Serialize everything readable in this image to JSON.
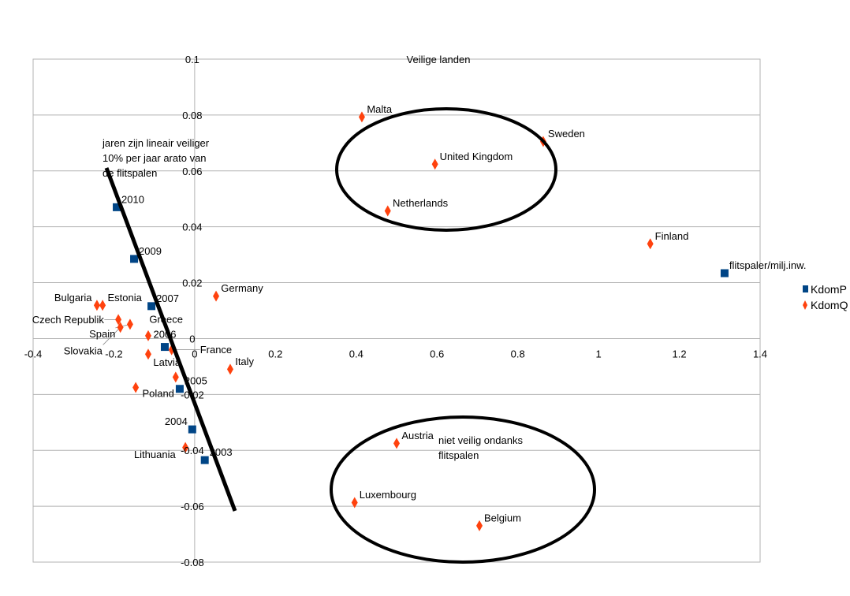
{
  "chart_data": {
    "type": "scatter",
    "title": "Veilige landen",
    "xlim": [
      -0.4,
      1.4
    ],
    "ylim": [
      -0.08,
      0.1
    ],
    "x_ticks": [
      "-0.4",
      "-0.2",
      "0",
      "0.2",
      "0.4",
      "0.6",
      "0.8",
      "1",
      "1.2",
      "1.4"
    ],
    "y_ticks": [
      "0.1",
      "0.08",
      "0.06",
      "0.04",
      "0.02",
      "0",
      "-0.02",
      "-0.04",
      "-0.06",
      "-0.08"
    ],
    "grid": "horizontal",
    "legend_position": "right",
    "series": [
      {
        "name": "KdomP",
        "color": "#004586",
        "marker": "square",
        "points": [
          {
            "label": "2010",
            "x": -0.193,
            "y": 0.047
          },
          {
            "label": "2009",
            "x": -0.15,
            "y": 0.0285
          },
          {
            "label": "2007",
            "x": -0.107,
            "y": 0.0116
          },
          {
            "label": "2006",
            "x": -0.074,
            "y": -0.003
          },
          {
            "label": "2005",
            "x": -0.037,
            "y": -0.018
          },
          {
            "label": "2004",
            "x": -0.006,
            "y": -0.0325
          },
          {
            "label": "2003",
            "x": 0.025,
            "y": -0.0435
          },
          {
            "label": "flitspaler/milj.inw.",
            "x": 1.312,
            "y": 0.0234
          }
        ]
      },
      {
        "name": "KdomQ",
        "color": "#ff420e",
        "marker": "diamond",
        "points": [
          {
            "label": "Malta",
            "x": 0.414,
            "y": 0.0793
          },
          {
            "label": "United Kingdom",
            "x": 0.595,
            "y": 0.0624
          },
          {
            "label": "Sweden",
            "x": 0.863,
            "y": 0.0705
          },
          {
            "label": "Netherlands",
            "x": 0.478,
            "y": 0.0457
          },
          {
            "label": "Finland",
            "x": 1.128,
            "y": 0.0339
          },
          {
            "label": "Germany",
            "x": 0.053,
            "y": 0.0152
          },
          {
            "label": "Italy",
            "x": 0.088,
            "y": -0.011
          },
          {
            "label": "Austria",
            "x": 0.5,
            "y": -0.0375
          },
          {
            "label": "Luxembourg",
            "x": 0.396,
            "y": -0.0587
          },
          {
            "label": "Belgium",
            "x": 0.705,
            "y": -0.067
          },
          {
            "label": "Latvia",
            "x": -0.115,
            "y": -0.0056
          },
          {
            "label": "Lithuania",
            "x": -0.023,
            "y": -0.039
          },
          {
            "label": "Poland",
            "x": -0.047,
            "y": -0.0138
          },
          {
            "label": "France",
            "x": -0.057,
            "y": -0.004
          },
          {
            "label": "Greece",
            "x": -0.115,
            "y": 0.001
          },
          {
            "label": "Spain",
            "x": -0.16,
            "y": 0.0051
          },
          {
            "label": "Bulgaria",
            "x": -0.242,
            "y": 0.0119
          },
          {
            "label": "Estonia",
            "x": -0.228,
            "y": 0.0119
          },
          {
            "label": "Czech Republik",
            "x": -0.189,
            "y": 0.0068
          },
          {
            "label": "Slovakia",
            "x": -0.184,
            "y": 0.004
          },
          {
            "label": "",
            "x": -0.146,
            "y": -0.0175
          }
        ]
      }
    ],
    "annotations": {
      "trend_note": [
        "jaren zijn lineair veiliger",
        "10% per jaar arato van",
        "de flitspalen"
      ],
      "unsafe_note": [
        "niet veilig ondanks",
        "flitspalen"
      ]
    }
  }
}
